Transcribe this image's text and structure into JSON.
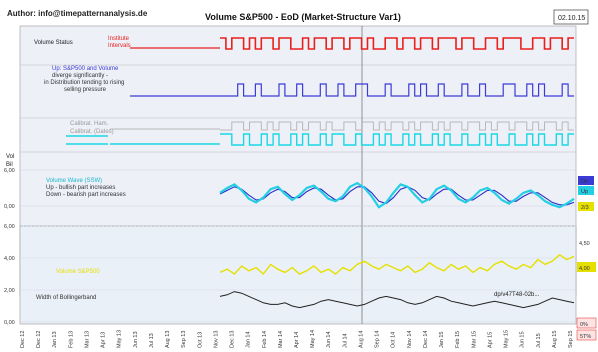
{
  "header": {
    "author": "Author: info@timepatternanalysis.de",
    "title": "Volume S&P500 - EoD (Market-Structure Var1)",
    "date": "02.10.15"
  },
  "panels": {
    "volume_status": {
      "label": "Volume Status",
      "sublabel_1": "Institute",
      "sublabel_2": "Intervals"
    },
    "divergence": {
      "label_1": "Up: S&P500 and Volume",
      "label_2": "diverge significantly -",
      "label_3": "in Distribution tending to rising",
      "label_4": "selling pressure"
    },
    "calibration": {
      "label_1": "Calibrat. Ham.",
      "label_2": "Calibrat. (Dates)"
    },
    "wave": {
      "left_label_1": "Vol",
      "left_label_2": "Bil",
      "label_1": "Volume Wave (SSW)",
      "label_2": "Up - bullish part increases",
      "label_3": "Down - bearish part increases",
      "right_badge_1": "Dn",
      "right_badge_2": "Up",
      "right_badge_3": "2/3"
    },
    "volume": {
      "label_1": "Volume S&P500",
      "label_2": "Width of Bollingerband",
      "annotation": "dp/v47T48-02b...",
      "right_value_1": "4,50",
      "right_value_2": "4,00",
      "corner_1": "0%",
      "corner_2": "5T%"
    }
  },
  "colors": {
    "status_red": "#e8201c",
    "divergence_blue": "#3b3bd6",
    "calibration_gray": "#b8b8b8",
    "calibration_cyan": "#19d8e6",
    "wave_cyan": "#22cfe3",
    "wave_blue": "#2a2ac8",
    "volume_yellow": "#e6e000",
    "bb_black": "#222222",
    "bb_blue": "#7aa0d0",
    "panel_bg": "#eef0f8"
  },
  "chart_data": {
    "type": "line",
    "title": "Volume S&P500 - EoD (Market-Structure Var1)",
    "wave_yticks": [
      "6,00",
      "0,00"
    ],
    "volume_yticks": [
      "6,00",
      "4,00",
      "2,00",
      "0,00"
    ],
    "x_tick_labels": [
      "Dec 12",
      "Dec 12",
      "Jan 13",
      "Feb 13",
      "Mar 13",
      "Apr 13",
      "May 13",
      "Jun 13",
      "Jul 13",
      "Aug 13",
      "Sep 13",
      "Oct 13",
      "Nov 13",
      "Dec 13",
      "Jan 14",
      "Feb 14",
      "Mar 14",
      "Apr 14",
      "May 14",
      "Jun 14",
      "Jul 14",
      "Aug 14",
      "Sep 14",
      "Oct 14",
      "Nov 14",
      "Dec 14",
      "Jan 15",
      "Feb 15",
      "Mar 15",
      "Apr 15",
      "May 15",
      "Jun 15",
      "Jul 15",
      "Aug 15",
      "Sep 15"
    ],
    "volume_status_steps": [
      1,
      0,
      1,
      1,
      0,
      1,
      0,
      1,
      1,
      0,
      1,
      1,
      0,
      0,
      1,
      0,
      1,
      1,
      0,
      1,
      1,
      0,
      1,
      1,
      0,
      1,
      0,
      0,
      1,
      1,
      0,
      1,
      1,
      0,
      1,
      1,
      0,
      1,
      1,
      1,
      0,
      1,
      1,
      0,
      0,
      1,
      1,
      0,
      1,
      1,
      1,
      0,
      0,
      1,
      1,
      0,
      1,
      1,
      0,
      1
    ],
    "divergence_steps": [
      0,
      0,
      0,
      1,
      0,
      0,
      1,
      0,
      0,
      0,
      1,
      0,
      0,
      1,
      0,
      0,
      0,
      1,
      0,
      0,
      1,
      0,
      0,
      1,
      1,
      0,
      0,
      0,
      1,
      0,
      0,
      0,
      1,
      0,
      1,
      0,
      0,
      1,
      0,
      0,
      0,
      1,
      0,
      0,
      1,
      0,
      0,
      0,
      1,
      1,
      0,
      0,
      1,
      0,
      1,
      0,
      0,
      0,
      1,
      0
    ],
    "calibration_steps": [
      0,
      0,
      1,
      1,
      0,
      1,
      1,
      0,
      1,
      0,
      1,
      1,
      0,
      1,
      0,
      1,
      1,
      0,
      1,
      0,
      0,
      1,
      1,
      0,
      1,
      1,
      0,
      1,
      0,
      1,
      1,
      0,
      1,
      0,
      1,
      1,
      0,
      1,
      0,
      1,
      1,
      0,
      1,
      1,
      0,
      1,
      0,
      1,
      1,
      0,
      1,
      1,
      0,
      1,
      0,
      1,
      1,
      0,
      1,
      0
    ],
    "series": [
      {
        "values": [
          2.2,
          3.0,
          3.6,
          2.6,
          1.2,
          0.6,
          1.4,
          2.8,
          3.2,
          2.0,
          1.0,
          1.8,
          3.0,
          3.4,
          2.4,
          1.2,
          0.8,
          1.6,
          3.2,
          3.8,
          3.0,
          1.6,
          -0.2,
          0.6,
          2.2,
          3.6,
          3.2,
          1.8,
          0.6,
          1.2,
          2.8,
          3.4,
          2.6,
          1.2,
          0.6,
          1.4,
          2.6,
          3.0,
          2.2,
          1.0,
          0.4,
          1.2,
          2.2,
          2.6,
          1.8,
          0.8,
          0.2,
          -0.2,
          0.4,
          1.2
        ]
      },
      {
        "values": [
          2.0,
          2.6,
          3.2,
          2.8,
          1.8,
          1.0,
          1.2,
          2.2,
          2.8,
          2.4,
          1.4,
          1.4,
          2.4,
          3.0,
          2.8,
          1.8,
          1.0,
          1.2,
          2.4,
          3.2,
          3.2,
          2.2,
          0.8,
          0.4,
          1.4,
          2.8,
          3.2,
          2.6,
          1.4,
          1.0,
          2.0,
          2.8,
          2.8,
          1.8,
          1.0,
          1.0,
          1.8,
          2.6,
          2.6,
          1.8,
          0.8,
          0.8,
          1.6,
          2.2,
          2.2,
          1.4,
          0.6,
          0.2,
          0.2,
          0.6
        ]
      },
      {
        "values": [
          3.1,
          3.3,
          3.0,
          3.5,
          3.2,
          3.4,
          3.0,
          3.6,
          3.3,
          3.1,
          3.4,
          3.0,
          3.2,
          3.5,
          3.1,
          3.3,
          3.0,
          3.4,
          3.2,
          3.6,
          3.8,
          3.5,
          3.3,
          3.6,
          3.4,
          3.2,
          3.5,
          3.1,
          3.3,
          3.7,
          3.4,
          3.2,
          3.6,
          3.3,
          3.5,
          3.1,
          3.4,
          3.2,
          3.6,
          3.8,
          3.5,
          3.3,
          3.6,
          3.4,
          3.9,
          3.6,
          3.8,
          4.2,
          3.9,
          4.1
        ]
      },
      {
        "values": [
          1.6,
          1.7,
          1.9,
          1.8,
          1.6,
          1.4,
          1.2,
          1.1,
          1.1,
          1.2,
          1.0,
          0.9,
          1.0,
          1.1,
          1.3,
          1.4,
          1.3,
          1.2,
          1.1,
          1.0,
          1.1,
          1.3,
          1.5,
          1.6,
          1.5,
          1.4,
          1.2,
          1.1,
          1.2,
          1.4,
          1.6,
          1.5,
          1.3,
          1.2,
          1.1,
          1.0,
          1.1,
          1.2,
          1.3,
          1.2,
          1.1,
          1.0,
          0.9,
          1.0,
          1.1,
          1.3,
          1.5,
          1.4,
          1.3,
          1.2
        ]
      }
    ]
  }
}
